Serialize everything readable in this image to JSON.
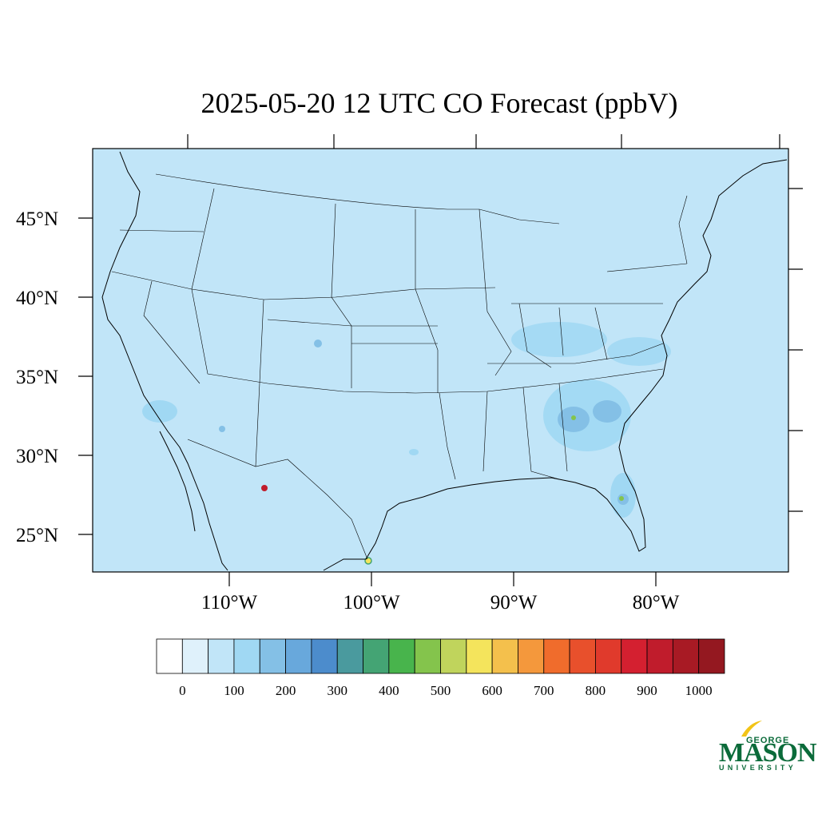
{
  "title": "2025-05-20 12 UTC CO Forecast (ppbV)",
  "map": {
    "lat_labels": [
      "45°N",
      "40°N",
      "35°N",
      "30°N",
      "25°N"
    ],
    "lon_labels": [
      "110°W",
      "100°W",
      "90°W",
      "80°W"
    ],
    "background_color": "#c1e5f8",
    "boundary_color": "#000000"
  },
  "colorbar": {
    "colors": [
      "#ffffff",
      "#dff1fb",
      "#c1e5f8",
      "#a0d8f3",
      "#84c0e6",
      "#68a8dc",
      "#4c8ccc",
      "#4a9a9e",
      "#44a474",
      "#48b44c",
      "#84c44c",
      "#c0d45c",
      "#f4e45c",
      "#f4c04c",
      "#f4983c",
      "#f06c2c",
      "#e8502c",
      "#e03a2c",
      "#d42030",
      "#c01c2c",
      "#a81a24",
      "#941820"
    ],
    "labels": [
      "0",
      "100",
      "200",
      "300",
      "400",
      "500",
      "600",
      "700",
      "800",
      "900",
      "1000"
    ]
  },
  "logo": {
    "line1": "GEORGE",
    "line2": "MASON",
    "line3": "UNIVERSITY",
    "color": "#0b6b3a",
    "accent": "#f2c417"
  }
}
